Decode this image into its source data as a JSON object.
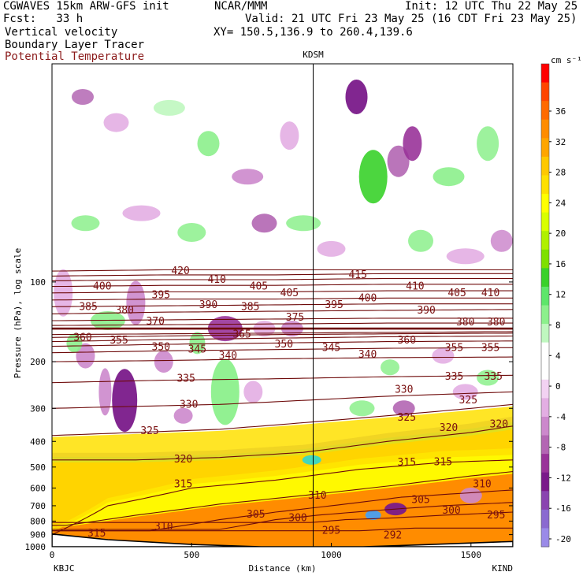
{
  "header": {
    "model": "CGWAVES 15km ARW-GFS init",
    "org": "NCAR/MMM",
    "init": "Init: 12 UTC Thu 22 May 25",
    "fcst": "Fcst:   33 h",
    "valid": "Valid: 21 UTC Fri 23 May 25 (16 CDT Fri 23 May 25)",
    "field1": "Vertical velocity",
    "field2": "Boundary Layer Tracer",
    "field3": "Potential Temperature",
    "xy": "XY= 150.5,136.9 to 260.4,139.6",
    "colors": {
      "ptemp": "#8b1a1a"
    }
  },
  "chart_data": {
    "type": "heatmap",
    "title": "",
    "xlabel": "Distance (km)",
    "ylabel": "Pressure (hPa), log scale",
    "xlim": [
      0,
      1650
    ],
    "ylim": [
      1000,
      15
    ],
    "y_scale": "log",
    "x_ticks": [
      0,
      500,
      1000,
      1500
    ],
    "y_ticks": [
      100,
      200,
      300,
      400,
      500,
      600,
      700,
      800,
      900,
      1000
    ],
    "left_station": "KBJC",
    "right_station": "KIND",
    "marker": {
      "label": "KDSM",
      "x": 935
    },
    "colorbar": {
      "unit": "cm s⁻¹",
      "ticks": [
        36,
        32,
        28,
        24,
        20,
        16,
        12,
        8,
        4,
        0,
        -4,
        -8,
        -12,
        -16,
        -20
      ],
      "colors": [
        "#ff0000",
        "#ff4500",
        "#ff6a00",
        "#ff8c00",
        "#ffa500",
        "#ffc800",
        "#ffe000",
        "#ffff00",
        "#d9ff00",
        "#b0f000",
        "#7ee000",
        "#39d12a",
        "#5ee66a",
        "#8cf08c",
        "#bff7bf",
        "#ffffff",
        "#ffffff",
        "#f2d2f2",
        "#e3aee3",
        "#cc88cc",
        "#b366b3",
        "#993399",
        "#7a1a8a",
        "#8a44b0",
        "#8a6ad0",
        "#9a8ae8"
      ]
    },
    "isentropes": [
      {
        "theta": 292,
        "p_at_x": [
          [
            1100,
            870
          ],
          [
            1300,
            850
          ]
        ]
      },
      {
        "theta": 295,
        "p_at_x": [
          [
            930,
            810
          ],
          [
            1050,
            790
          ],
          [
            1200,
            780
          ],
          [
            1400,
            760
          ],
          [
            1650,
            740
          ]
        ]
      },
      {
        "theta": 300,
        "p_at_x": [
          [
            600,
            860
          ],
          [
            800,
            790
          ],
          [
            950,
            760
          ],
          [
            1150,
            730
          ],
          [
            1400,
            700
          ],
          [
            1650,
            680
          ]
        ]
      },
      {
        "theta": 305,
        "p_at_x": [
          [
            350,
            870
          ],
          [
            600,
            790
          ],
          [
            800,
            740
          ],
          [
            1000,
            700
          ],
          [
            1250,
            650
          ],
          [
            1650,
            610
          ]
        ]
      },
      {
        "theta": 310,
        "p_at_x": [
          [
            50,
            830
          ],
          [
            300,
            760
          ],
          [
            600,
            690
          ],
          [
            900,
            640
          ],
          [
            1200,
            590
          ],
          [
            1500,
            540
          ],
          [
            1650,
            520
          ]
        ]
      },
      {
        "theta": 315,
        "p_at_x": [
          [
            0,
            900
          ],
          [
            200,
            700
          ],
          [
            500,
            600
          ],
          [
            800,
            560
          ],
          [
            1100,
            510
          ],
          [
            1400,
            480
          ],
          [
            1650,
            470
          ]
        ]
      },
      {
        "theta": 320,
        "p_at_x": [
          [
            0,
            470
          ],
          [
            300,
            470
          ],
          [
            600,
            460
          ],
          [
            900,
            440
          ],
          [
            1200,
            400
          ],
          [
            1500,
            370
          ],
          [
            1650,
            350
          ]
        ]
      },
      {
        "theta": 325,
        "p_at_x": [
          [
            0,
            380
          ],
          [
            300,
            370
          ],
          [
            600,
            360
          ],
          [
            900,
            340
          ],
          [
            1200,
            320
          ],
          [
            1500,
            300
          ],
          [
            1650,
            290
          ]
        ]
      },
      {
        "theta": 330,
        "p_at_x": [
          [
            0,
            300
          ],
          [
            300,
            295
          ],
          [
            600,
            290
          ],
          [
            900,
            280
          ],
          [
            1200,
            270
          ],
          [
            1650,
            260
          ]
        ]
      },
      {
        "theta": 335,
        "p_at_x": [
          [
            0,
            240
          ],
          [
            400,
            235
          ],
          [
            800,
            232
          ],
          [
            1200,
            228
          ],
          [
            1650,
            225
          ]
        ]
      },
      {
        "theta": 340,
        "p_at_x": [
          [
            0,
            200
          ],
          [
            400,
            198
          ],
          [
            800,
            195
          ],
          [
            1200,
            193
          ],
          [
            1650,
            192
          ]
        ]
      },
      {
        "theta": 345,
        "p_at_x": [
          [
            0,
            185
          ],
          [
            400,
            182
          ],
          [
            800,
            180
          ],
          [
            1200,
            178
          ],
          [
            1650,
            177
          ]
        ]
      },
      {
        "theta": 350,
        "p_at_x": [
          [
            0,
            175
          ],
          [
            400,
            172
          ],
          [
            800,
            170
          ],
          [
            1200,
            168
          ],
          [
            1650,
            167
          ]
        ]
      },
      {
        "theta": 355,
        "p_at_x": [
          [
            0,
            168
          ],
          [
            400,
            165
          ],
          [
            800,
            163
          ],
          [
            1200,
            161
          ],
          [
            1650,
            160
          ]
        ]
      },
      {
        "theta": 360,
        "p_at_x": [
          [
            0,
            162
          ],
          [
            400,
            160
          ],
          [
            800,
            158
          ],
          [
            1200,
            157
          ],
          [
            1650,
            156
          ]
        ]
      },
      {
        "theta": 365,
        "p_at_x": [
          [
            0,
            158
          ],
          [
            400,
            157
          ],
          [
            800,
            156
          ],
          [
            1200,
            155
          ],
          [
            1650,
            154
          ]
        ]
      },
      {
        "theta": 370,
        "p_at_x": [
          [
            0,
            150
          ],
          [
            400,
            150
          ],
          [
            800,
            150
          ],
          [
            1200,
            150
          ],
          [
            1650,
            150
          ]
        ]
      },
      {
        "theta": 375,
        "p_at_x": [
          [
            0,
            146
          ],
          [
            400,
            145
          ],
          [
            800,
            144
          ],
          [
            1200,
            143
          ],
          [
            1650,
            143
          ]
        ]
      },
      {
        "theta": 380,
        "p_at_x": [
          [
            0,
            140
          ],
          [
            400,
            139
          ],
          [
            800,
            138
          ],
          [
            1200,
            137
          ],
          [
            1650,
            137
          ]
        ]
      },
      {
        "theta": 385,
        "p_at_x": [
          [
            0,
            132
          ],
          [
            400,
            130
          ],
          [
            800,
            129
          ],
          [
            1200,
            128
          ],
          [
            1650,
            127
          ]
        ]
      },
      {
        "theta": 390,
        "p_at_x": [
          [
            0,
            124
          ],
          [
            400,
            123
          ],
          [
            800,
            122
          ],
          [
            1200,
            121
          ],
          [
            1650,
            121
          ]
        ]
      },
      {
        "theta": 395,
        "p_at_x": [
          [
            0,
            117
          ],
          [
            400,
            116
          ],
          [
            800,
            116
          ],
          [
            1200,
            115
          ],
          [
            1650,
            115
          ]
        ]
      },
      {
        "theta": 400,
        "p_at_x": [
          [
            0,
            110
          ],
          [
            400,
            109
          ],
          [
            800,
            109
          ],
          [
            1200,
            108
          ],
          [
            1650,
            108
          ]
        ]
      },
      {
        "theta": 405,
        "p_at_x": [
          [
            0,
            104
          ],
          [
            400,
            103
          ],
          [
            800,
            103
          ],
          [
            1200,
            102
          ],
          [
            1650,
            102
          ]
        ]
      },
      {
        "theta": 410,
        "p_at_x": [
          [
            0,
            99
          ],
          [
            400,
            98
          ],
          [
            800,
            98
          ],
          [
            1200,
            97
          ],
          [
            1650,
            97
          ]
        ]
      },
      {
        "theta": 415,
        "p_at_x": [
          [
            0,
            95
          ],
          [
            400,
            94
          ],
          [
            800,
            94
          ],
          [
            1200,
            93
          ],
          [
            1650,
            93
          ]
        ]
      },
      {
        "theta": 420,
        "p_at_x": [
          [
            0,
            91
          ],
          [
            400,
            90
          ],
          [
            800,
            90
          ],
          [
            1200,
            90
          ],
          [
            1650,
            90
          ]
        ]
      }
    ],
    "isentrope_labels": [
      {
        "text": "420",
        "x": 460,
        "p": 91
      },
      {
        "text": "415",
        "x": 1095,
        "p": 94
      },
      {
        "text": "400",
        "x": 180,
        "p": 104
      },
      {
        "text": "410",
        "x": 590,
        "p": 98
      },
      {
        "text": "405",
        "x": 740,
        "p": 104
      },
      {
        "text": "410",
        "x": 1300,
        "p": 104
      },
      {
        "text": "405",
        "x": 850,
        "p": 110
      },
      {
        "text": "395",
        "x": 390,
        "p": 112
      },
      {
        "text": "400",
        "x": 1130,
        "p": 115
      },
      {
        "text": "405",
        "x": 1450,
        "p": 110
      },
      {
        "text": "410",
        "x": 1570,
        "p": 110
      },
      {
        "text": "385",
        "x": 130,
        "p": 124
      },
      {
        "text": "380",
        "x": 260,
        "p": 128
      },
      {
        "text": "390",
        "x": 560,
        "p": 122
      },
      {
        "text": "385",
        "x": 710,
        "p": 124
      },
      {
        "text": "395",
        "x": 1010,
        "p": 122
      },
      {
        "text": "390",
        "x": 1340,
        "p": 128
      },
      {
        "text": "370",
        "x": 370,
        "p": 141
      },
      {
        "text": "375",
        "x": 870,
        "p": 136
      },
      {
        "text": "380",
        "x": 1480,
        "p": 142
      },
      {
        "text": "380",
        "x": 1590,
        "p": 142
      },
      {
        "text": "360",
        "x": 110,
        "p": 162
      },
      {
        "text": "355",
        "x": 240,
        "p": 166
      },
      {
        "text": "365",
        "x": 680,
        "p": 158
      },
      {
        "text": "360",
        "x": 1270,
        "p": 166
      },
      {
        "text": "350",
        "x": 390,
        "p": 176
      },
      {
        "text": "345",
        "x": 520,
        "p": 180
      },
      {
        "text": "340",
        "x": 630,
        "p": 190
      },
      {
        "text": "350",
        "x": 830,
        "p": 172
      },
      {
        "text": "345",
        "x": 1000,
        "p": 177
      },
      {
        "text": "340",
        "x": 1130,
        "p": 188
      },
      {
        "text": "355",
        "x": 1440,
        "p": 177
      },
      {
        "text": "355",
        "x": 1570,
        "p": 177
      },
      {
        "text": "335",
        "x": 480,
        "p": 232
      },
      {
        "text": "335",
        "x": 1440,
        "p": 228
      },
      {
        "text": "335",
        "x": 1580,
        "p": 228
      },
      {
        "text": "330",
        "x": 490,
        "p": 290
      },
      {
        "text": "330",
        "x": 1260,
        "p": 255
      },
      {
        "text": "325",
        "x": 1490,
        "p": 280
      },
      {
        "text": "325",
        "x": 1270,
        "p": 325
      },
      {
        "text": "325",
        "x": 350,
        "p": 365
      },
      {
        "text": "320",
        "x": 1420,
        "p": 355
      },
      {
        "text": "320",
        "x": 1600,
        "p": 345
      },
      {
        "text": "320",
        "x": 470,
        "p": 468
      },
      {
        "text": "315",
        "x": 1270,
        "p": 480
      },
      {
        "text": "315",
        "x": 1400,
        "p": 478
      },
      {
        "text": "315",
        "x": 470,
        "p": 580
      },
      {
        "text": "310",
        "x": 950,
        "p": 640
      },
      {
        "text": "310",
        "x": 1540,
        "p": 580
      },
      {
        "text": "305",
        "x": 1320,
        "p": 665
      },
      {
        "text": "305",
        "x": 730,
        "p": 755
      },
      {
        "text": "300",
        "x": 880,
        "p": 780
      },
      {
        "text": "300",
        "x": 1430,
        "p": 730
      },
      {
        "text": "295",
        "x": 1000,
        "p": 870
      },
      {
        "text": "295",
        "x": 1590,
        "p": 760
      },
      {
        "text": "292",
        "x": 1220,
        "p": 905
      },
      {
        "text": "310",
        "x": 400,
        "p": 840
      },
      {
        "text": "315",
        "x": 160,
        "p": 890
      }
    ],
    "terrain_p_at_x": [
      [
        0,
        895
      ],
      [
        200,
        940
      ],
      [
        500,
        980
      ],
      [
        800,
        1005
      ],
      [
        935,
        1015
      ],
      [
        1300,
        985
      ],
      [
        1650,
        955
      ]
    ],
    "grid": false,
    "legend": "colorbar-right"
  }
}
